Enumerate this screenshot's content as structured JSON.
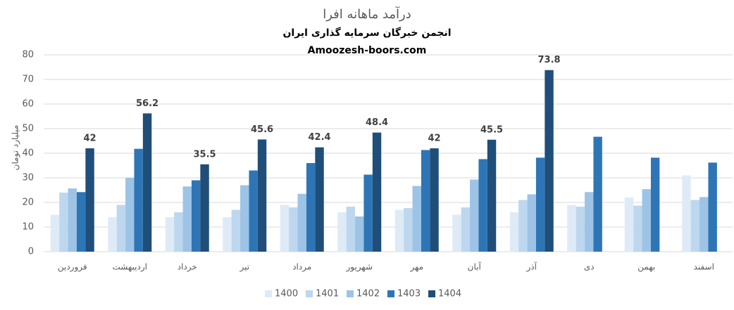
{
  "chart_data": {
    "type": "bar",
    "title": "درآمد ماهانه افرا",
    "subtitle": "انجمن خبرگان سرمایه گذاری ایران",
    "source": "Amoozesh-boors.com",
    "y_label": "میلیارد تومان",
    "categories": [
      "فروردین",
      "اردیبهشت",
      "خرداد",
      "تیر",
      "مرداد",
      "شهریور",
      "مهر",
      "آبان",
      "آذر",
      "دی",
      "بهمن",
      "اسفند"
    ],
    "series": [
      {
        "name": "1400",
        "color": "#deebf7",
        "values": [
          15,
          14,
          14,
          14,
          19,
          16,
          17,
          15,
          16,
          19,
          22,
          31
        ]
      },
      {
        "name": "1401",
        "color": "#bdd7ee",
        "values": [
          24,
          19,
          16,
          17,
          18,
          18.3,
          17.7,
          18,
          21,
          18.3,
          18.7,
          21
        ]
      },
      {
        "name": "1402",
        "color": "#9dc3e6",
        "values": [
          25.7,
          30,
          26.5,
          27,
          23.5,
          14.3,
          26.7,
          29.3,
          23.3,
          24.2,
          25.4,
          22.2
        ]
      },
      {
        "name": "1403",
        "color": "#2e75b6",
        "values": [
          24.2,
          41.8,
          29,
          33,
          36,
          31.3,
          41.3,
          37.6,
          38.2,
          46.7,
          38.2,
          36.2
        ]
      },
      {
        "name": "1404",
        "color": "#1f4e79",
        "values": [
          42,
          56.2,
          35.5,
          45.6,
          42.4,
          48.4,
          42,
          45.5,
          73.8,
          null,
          null,
          null
        ],
        "show_labels": true
      }
    ],
    "ylim": [
      0,
      80
    ],
    "yticks": [
      0,
      10,
      20,
      30,
      40,
      50,
      60,
      70,
      80
    ],
    "grid": true,
    "legend": "bottom"
  }
}
